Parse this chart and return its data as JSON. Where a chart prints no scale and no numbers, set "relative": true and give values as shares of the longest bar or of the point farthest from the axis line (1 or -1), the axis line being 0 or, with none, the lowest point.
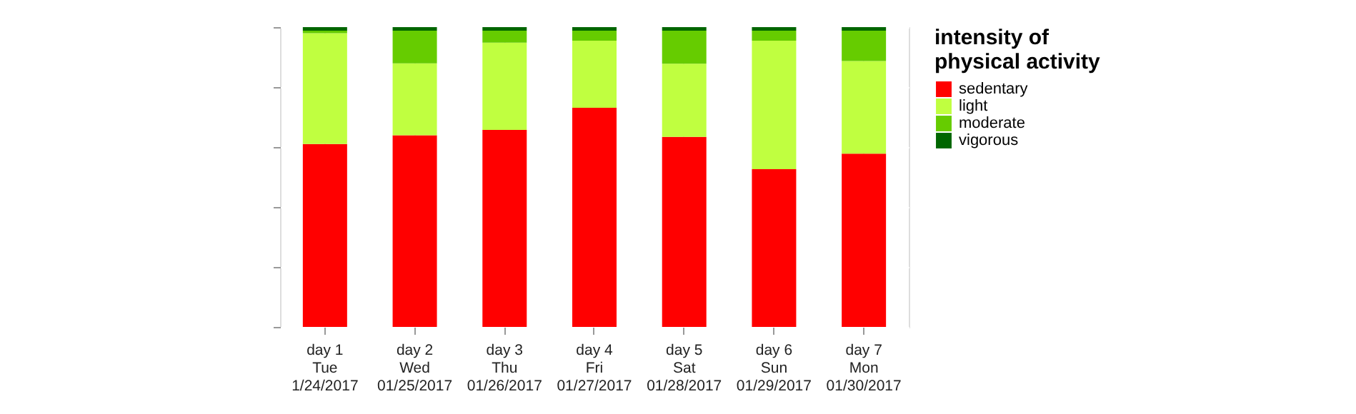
{
  "chart_data": {
    "type": "bar",
    "stacked": true,
    "relative": true,
    "legend_title": "intensity of\nphysical activity",
    "legend": "right",
    "grid": true,
    "categories": [
      "day 1\nTue\n1/24/2017",
      "day 2\nWed\n01/25/2017",
      "day 3\nThu\n01/26/2017",
      "day 4\nFri\n01/27/2017",
      "day 5\nSat\n01/28/2017",
      "day 6\nSun\n01/29/2017",
      "day 7\nMon\n01/30/2017"
    ],
    "series": [
      {
        "name": "sedentary",
        "color": "#ff0000",
        "values": [
          0.61,
          0.639,
          0.657,
          0.731,
          0.634,
          0.526,
          0.578
        ]
      },
      {
        "name": "light",
        "color": "#c0ff40",
        "values": [
          0.37,
          0.24,
          0.291,
          0.224,
          0.244,
          0.429,
          0.309
        ]
      },
      {
        "name": "moderate",
        "color": "#66cc00",
        "values": [
          0.008,
          0.109,
          0.04,
          0.033,
          0.11,
          0.033,
          0.101
        ]
      },
      {
        "name": "vigorous",
        "color": "#006600",
        "values": [
          0.012,
          0.012,
          0.012,
          0.012,
          0.012,
          0.012,
          0.012
        ]
      }
    ]
  }
}
